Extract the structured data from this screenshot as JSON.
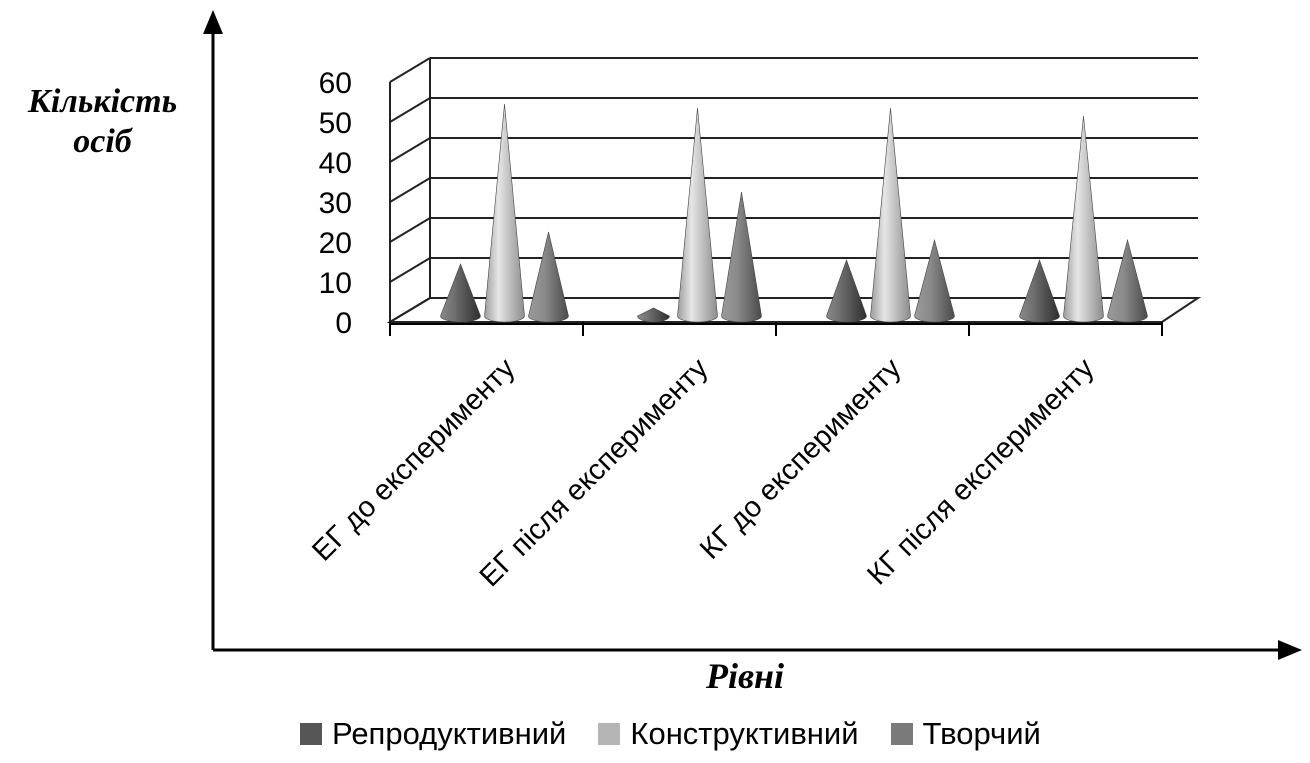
{
  "chart_data": {
    "type": "bar",
    "style": "3d-cone",
    "title": "",
    "xlabel": "Рівні",
    "ylabel": "Кількість осіб",
    "ylabel_lines": [
      "Кількість",
      "осіб"
    ],
    "ylim": [
      0,
      60
    ],
    "yticks": [
      "0",
      "10",
      "20",
      "30",
      "40",
      "50",
      "60"
    ],
    "grid": true,
    "legend_position": "bottom",
    "categories": [
      "ЕГ до експерименту",
      "ЕГ після експерименту",
      "КГ до експерименту",
      "КГ після експерименту"
    ],
    "series": [
      {
        "name": "Репродуктивний",
        "color": "#555555",
        "values": [
          13,
          2,
          14,
          14
        ]
      },
      {
        "name": "Конструктивний",
        "color": "#b4b4b4",
        "values": [
          53,
          52,
          52,
          50
        ]
      },
      {
        "name": "Творчий",
        "color": "#7a7a7a",
        "values": [
          21,
          31,
          19,
          19
        ]
      }
    ]
  }
}
